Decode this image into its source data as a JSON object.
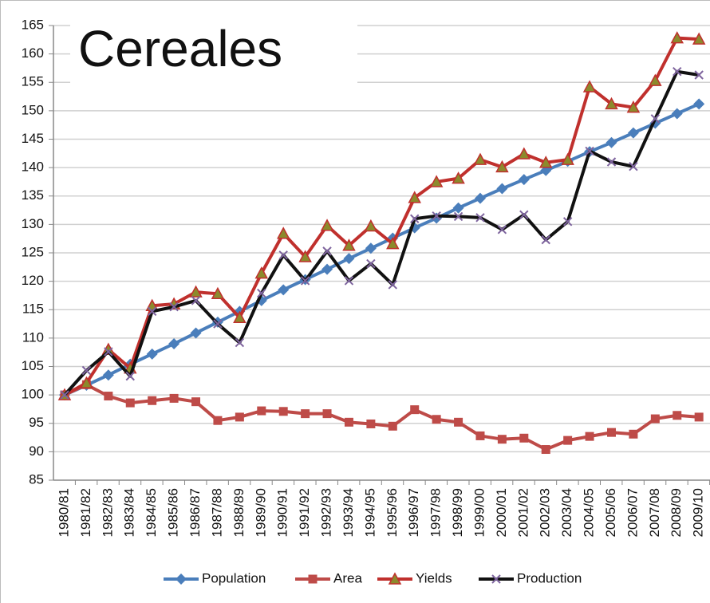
{
  "chart_data": {
    "type": "line",
    "title": "Cereales",
    "categories": [
      "1980/81",
      "1981/82",
      "1982/83",
      "1983/84",
      "1984/85",
      "1985/86",
      "1986/87",
      "1987/88",
      "1988/89",
      "1989/90",
      "1990/91",
      "1991/92",
      "1992/93",
      "1993/94",
      "1994/95",
      "1995/96",
      "1996/97",
      "1997/98",
      "1998/99",
      "1999/00",
      "2000/01",
      "2001/02",
      "2002/03",
      "2003/04",
      "2004/05",
      "2005/06",
      "2006/07",
      "2007/08",
      "2008/09",
      "2009/10"
    ],
    "series": [
      {
        "name": "Population",
        "color": "#4a7ebb",
        "marker": "diamond",
        "values": [
          100,
          101.7,
          103.5,
          105.4,
          107.2,
          109,
          110.9,
          112.8,
          114.7,
          116.6,
          118.5,
          120.3,
          122.1,
          124,
          125.8,
          127.6,
          129.4,
          131.1,
          132.9,
          134.6,
          136.3,
          137.9,
          139.5,
          141.1,
          142.8,
          144.4,
          146.1,
          147.8,
          149.5,
          151.2
        ]
      },
      {
        "name": "Area",
        "color": "#be4b48",
        "marker": "square",
        "values": [
          100,
          101.8,
          99.8,
          98.6,
          99,
          99.4,
          98.8,
          95.5,
          96.1,
          97.2,
          97.1,
          96.7,
          96.7,
          95.2,
          94.9,
          94.5,
          97.4,
          95.7,
          95.2,
          92.8,
          92.2,
          92.4,
          90.4,
          92,
          92.7,
          93.4,
          93.1,
          95.8,
          96.4,
          96.1
        ]
      },
      {
        "name": "Yields",
        "color": "#c0302d",
        "marker": "triangle",
        "values": [
          100,
          102.1,
          108,
          104.7,
          115.7,
          116,
          118.1,
          117.8,
          113.6,
          121.4,
          128.4,
          124.3,
          129.8,
          126.3,
          129.7,
          126.6,
          134.7,
          137.5,
          138.1,
          141.4,
          140.1,
          142.4,
          140.9,
          141.4,
          154.2,
          151.2,
          150.6,
          155.3,
          162.8,
          162.6
        ]
      },
      {
        "name": "Production",
        "color": "#111111",
        "marker": "x",
        "values": [
          100,
          104.3,
          107.6,
          103.3,
          114.7,
          115.5,
          116.6,
          112.5,
          109.2,
          117.9,
          124.6,
          120.1,
          125.3,
          120.1,
          123.1,
          119.4,
          131,
          131.5,
          131.4,
          131.2,
          129.1,
          131.7,
          127.3,
          130.5,
          142.9,
          141,
          140.2,
          148.6,
          156.9,
          156.3
        ]
      }
    ],
    "ylim": [
      85,
      165
    ],
    "yticks": [
      85,
      90,
      95,
      100,
      105,
      110,
      115,
      120,
      125,
      130,
      135,
      140,
      145,
      150,
      155,
      160,
      165
    ],
    "grid": true
  }
}
